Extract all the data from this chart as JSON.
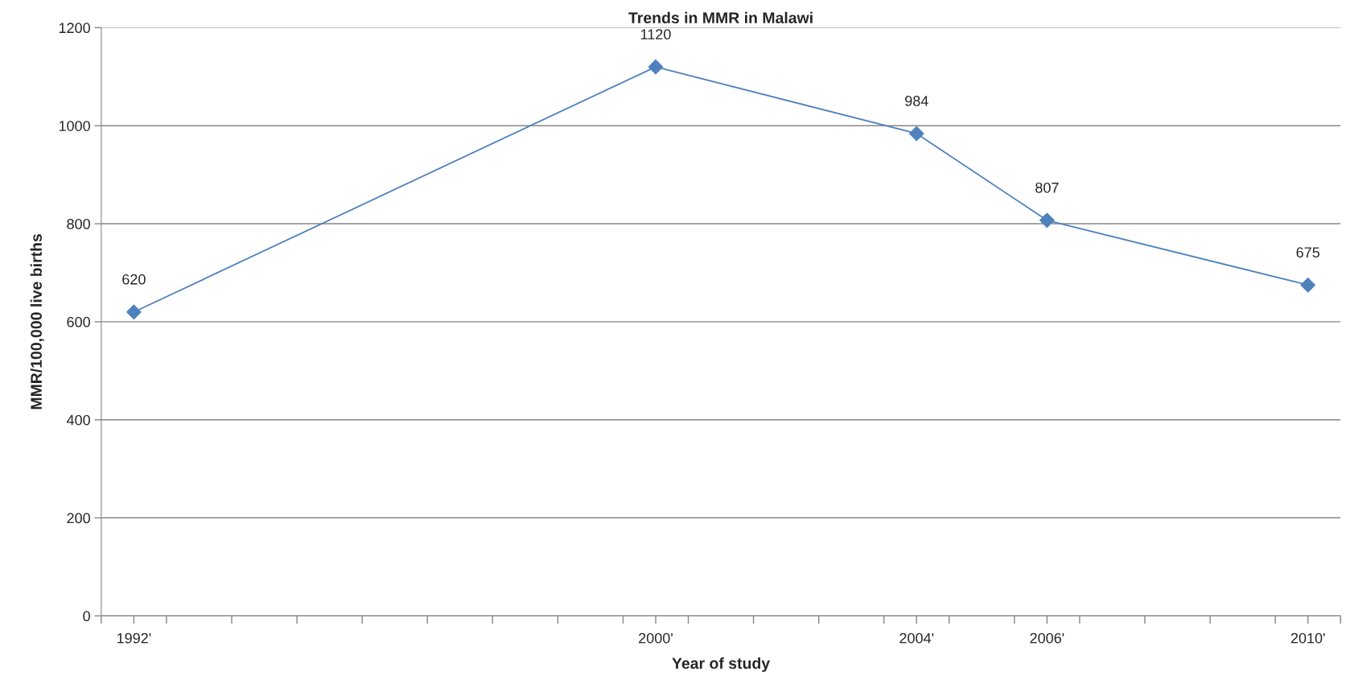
{
  "chart_data": {
    "type": "line",
    "title": "Trends in MMR in Malawi",
    "xlabel": "Year of study",
    "ylabel": "MMR/100,000 live births",
    "x": [
      1992,
      2000,
      2004,
      2006,
      2010
    ],
    "series": [
      {
        "color": "#4f81bd",
        "values": [
          620,
          1120,
          984,
          807,
          675
        ]
      }
    ],
    "data_labels": true,
    "marker": "diamond",
    "line_style": "solid",
    "grid": "y",
    "xlim": [
      1991.5,
      2010.5
    ],
    "xticks": [
      {
        "value": 1991.5,
        "label": null
      },
      {
        "value": 1992,
        "label": "1992'"
      },
      {
        "value": 1992.5,
        "label": null
      },
      {
        "value": 1993.5,
        "label": null
      },
      {
        "value": 1994.5,
        "label": null
      },
      {
        "value": 1995.5,
        "label": null
      },
      {
        "value": 1996.5,
        "label": null
      },
      {
        "value": 1997.5,
        "label": null
      },
      {
        "value": 1998.5,
        "label": null
      },
      {
        "value": 1999.5,
        "label": null
      },
      {
        "value": 2000,
        "label": "2000'"
      },
      {
        "value": 2000.5,
        "label": null
      },
      {
        "value": 2001.5,
        "label": null
      },
      {
        "value": 2002.5,
        "label": null
      },
      {
        "value": 2003.5,
        "label": null
      },
      {
        "value": 2004,
        "label": "2004'"
      },
      {
        "value": 2004.5,
        "label": null
      },
      {
        "value": 2005.5,
        "label": null
      },
      {
        "value": 2006,
        "label": "2006'"
      },
      {
        "value": 2006.5,
        "label": null
      },
      {
        "value": 2007.5,
        "label": null
      },
      {
        "value": 2008.5,
        "label": null
      },
      {
        "value": 2009.5,
        "label": null
      },
      {
        "value": 2010,
        "label": "2010'"
      },
      {
        "value": 2010.5,
        "label": null
      }
    ],
    "ylim": [
      0,
      1200
    ],
    "yticks": [
      0,
      200,
      400,
      600,
      800,
      1000,
      1200
    ]
  }
}
